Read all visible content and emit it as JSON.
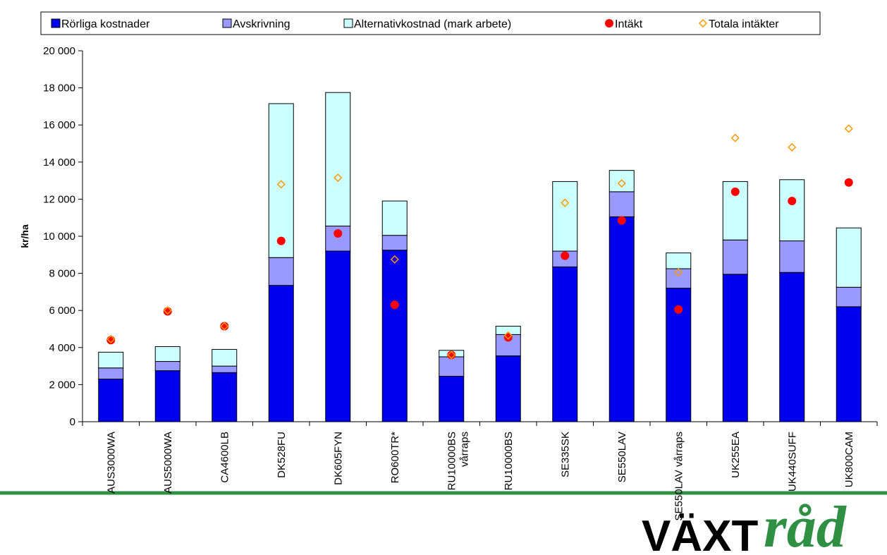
{
  "chart_data": {
    "type": "bar",
    "stacked": true,
    "categories": [
      "AUS3000WA",
      "AUS5000WA",
      "CA4600LB",
      "DK528FU",
      "DK605FYN",
      "RO600TR*",
      "RU10000BS\nvårraps",
      "RU10000BS",
      "SE335SK",
      "SE550LAV",
      "SE550LAV vårraps",
      "UK255EA",
      "UK440SUFF",
      "UK800CAM"
    ],
    "series": [
      {
        "name": "Rörliga kostnader",
        "kind": "bar",
        "color": "#0000ee",
        "values": [
          2300,
          2750,
          2650,
          7350,
          9200,
          9250,
          2450,
          3550,
          8350,
          11050,
          7200,
          7950,
          8050,
          6200
        ]
      },
      {
        "name": "Avskrivning",
        "kind": "bar",
        "color": "#9999ff",
        "values": [
          600,
          500,
          350,
          1500,
          1350,
          800,
          1050,
          1150,
          850,
          1350,
          1050,
          1850,
          1700,
          1050
        ]
      },
      {
        "name": "Alternativkostnad (mark arbete)",
        "kind": "bar",
        "color": "#ccffff",
        "values": [
          850,
          800,
          900,
          8300,
          7200,
          1850,
          350,
          450,
          3750,
          1150,
          850,
          3150,
          3300,
          3200
        ]
      },
      {
        "name": "Intäkt",
        "kind": "point",
        "marker": "circle",
        "color": "#ff0000",
        "values": [
          4400,
          5950,
          5150,
          9750,
          10150,
          6300,
          3600,
          4550,
          8950,
          10850,
          6050,
          12400,
          11900,
          12900
        ]
      },
      {
        "name": "Totala intäkter",
        "kind": "point",
        "marker": "diamond",
        "color": "#ff9900",
        "values": [
          4450,
          6000,
          5150,
          12800,
          13150,
          8750,
          3600,
          4650,
          11800,
          12850,
          8050,
          15300,
          14800,
          15800
        ]
      }
    ],
    "ylabel": "kr/ha",
    "ylim": [
      0,
      20000
    ],
    "yticks": [
      0,
      2000,
      4000,
      6000,
      8000,
      10000,
      12000,
      14000,
      16000,
      18000,
      20000
    ],
    "ytick_labels": [
      "0",
      "2 000",
      "4 000",
      "6 000",
      "8 000",
      "10 000",
      "12 000",
      "14 000",
      "16 000",
      "18 000",
      "20 000"
    ],
    "legend_position": "top",
    "grid": false
  },
  "logo": {
    "part1": "VÄXT",
    "part2": "råd"
  },
  "colors": {
    "rule": "#2f8f43"
  }
}
